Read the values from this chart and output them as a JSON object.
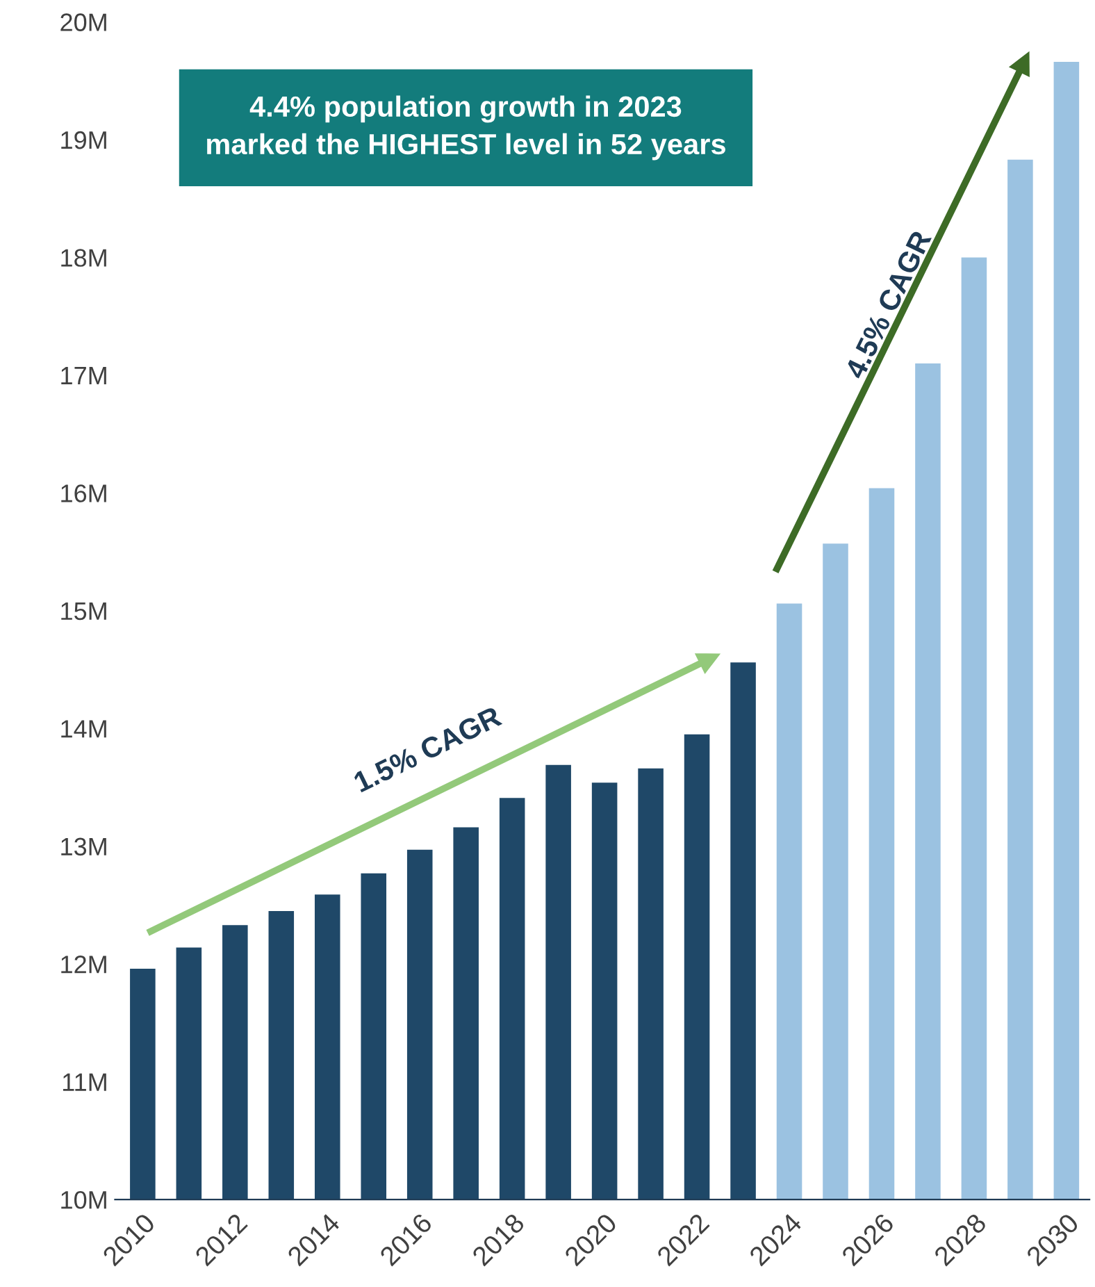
{
  "chart_data": {
    "type": "bar",
    "title": "4.4% population growth in 2023\nmarked the HIGHEST level in 52 years",
    "categories": [
      "2010",
      null,
      "2012",
      null,
      "2014",
      null,
      "2016",
      null,
      "2018",
      null,
      "2020",
      null,
      "2022",
      null,
      "2024",
      null,
      "2026",
      null,
      "2028",
      null,
      "2030"
    ],
    "values": [
      11.96,
      12.14,
      12.33,
      12.45,
      12.59,
      12.77,
      12.97,
      13.16,
      13.41,
      13.69,
      13.54,
      13.66,
      13.95,
      14.56,
      15.06,
      15.57,
      16.04,
      17.1,
      18.0,
      18.83,
      19.66
    ],
    "colors": [
      "#1f4868",
      "#1f4868",
      "#1f4868",
      "#1f4868",
      "#1f4868",
      "#1f4868",
      "#1f4868",
      "#1f4868",
      "#1f4868",
      "#1f4868",
      "#1f4868",
      "#1f4868",
      "#1f4868",
      "#1f4868",
      "#9bc2e1",
      "#9bc2e1",
      "#9bc2e1",
      "#9bc2e1",
      "#9bc2e1",
      "#9bc2e1",
      "#9bc2e1"
    ],
    "ylim": [
      10,
      20
    ],
    "yticks": [
      {
        "value": 10,
        "label": "10M"
      },
      {
        "value": 11,
        "label": "11M"
      },
      {
        "value": 12,
        "label": "12M"
      },
      {
        "value": 13,
        "label": "13M"
      },
      {
        "value": 14,
        "label": "14M"
      },
      {
        "value": 15,
        "label": "15M"
      },
      {
        "value": 16,
        "label": "16M"
      },
      {
        "value": 17,
        "label": "17M"
      },
      {
        "value": 18,
        "label": "18M"
      },
      {
        "value": 19,
        "label": "19M"
      },
      {
        "value": 20,
        "label": "20M"
      }
    ],
    "annotations": [
      "1.5% CAGR",
      "4.5% CAGR"
    ],
    "grid": false
  }
}
